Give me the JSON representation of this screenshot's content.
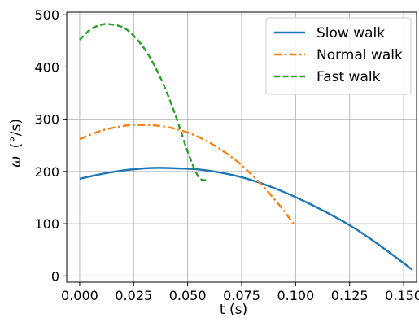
{
  "chart_data": {
    "type": "line",
    "title": "",
    "xlabel": "t (s)",
    "ylabel_symbol": "ω",
    "ylabel_unit": "(°/s)",
    "xlim": [
      -0.006,
      0.156
    ],
    "ylim": [
      -12,
      505
    ],
    "xticks": [
      0.0,
      0.025,
      0.05,
      0.075,
      0.1,
      0.125,
      0.15
    ],
    "xtick_labels": [
      "0.000",
      "0.025",
      "0.050",
      "0.075",
      "0.100",
      "0.125",
      "0.150"
    ],
    "yticks": [
      0,
      100,
      200,
      300,
      400,
      500
    ],
    "ytick_labels": [
      "0",
      "100",
      "200",
      "300",
      "400",
      "500"
    ],
    "grid": true,
    "legend_position": "top-right",
    "series": [
      {
        "name": "Slow walk",
        "color": "#1f77b4",
        "dash": "solid",
        "x": [
          0.0,
          0.01,
          0.02,
          0.03,
          0.037,
          0.045,
          0.055,
          0.065,
          0.075,
          0.085,
          0.095,
          0.105,
          0.115,
          0.125,
          0.135,
          0.145,
          0.154
        ],
        "y": [
          186,
          195,
          202,
          206,
          207,
          206,
          204,
          198,
          189,
          176,
          160,
          141,
          120,
          97,
          70,
          40,
          12
        ]
      },
      {
        "name": "Normal walk",
        "color": "#ff7f0e",
        "dash": "dashdot",
        "x": [
          0.0,
          0.01,
          0.02,
          0.027,
          0.035,
          0.045,
          0.055,
          0.065,
          0.075,
          0.085,
          0.093,
          0.099
        ],
        "y": [
          262,
          278,
          287,
          289,
          288,
          281,
          266,
          243,
          212,
          171,
          133,
          100
        ]
      },
      {
        "name": "Fast walk",
        "color": "#2ca02c",
        "dash": "dashed",
        "x": [
          0.0,
          0.005,
          0.01,
          0.014,
          0.02,
          0.025,
          0.03,
          0.035,
          0.04,
          0.045,
          0.05,
          0.055,
          0.059
        ],
        "y": [
          452,
          472,
          481,
          482,
          476,
          460,
          435,
          400,
          355,
          300,
          238,
          190,
          183
        ]
      }
    ]
  }
}
